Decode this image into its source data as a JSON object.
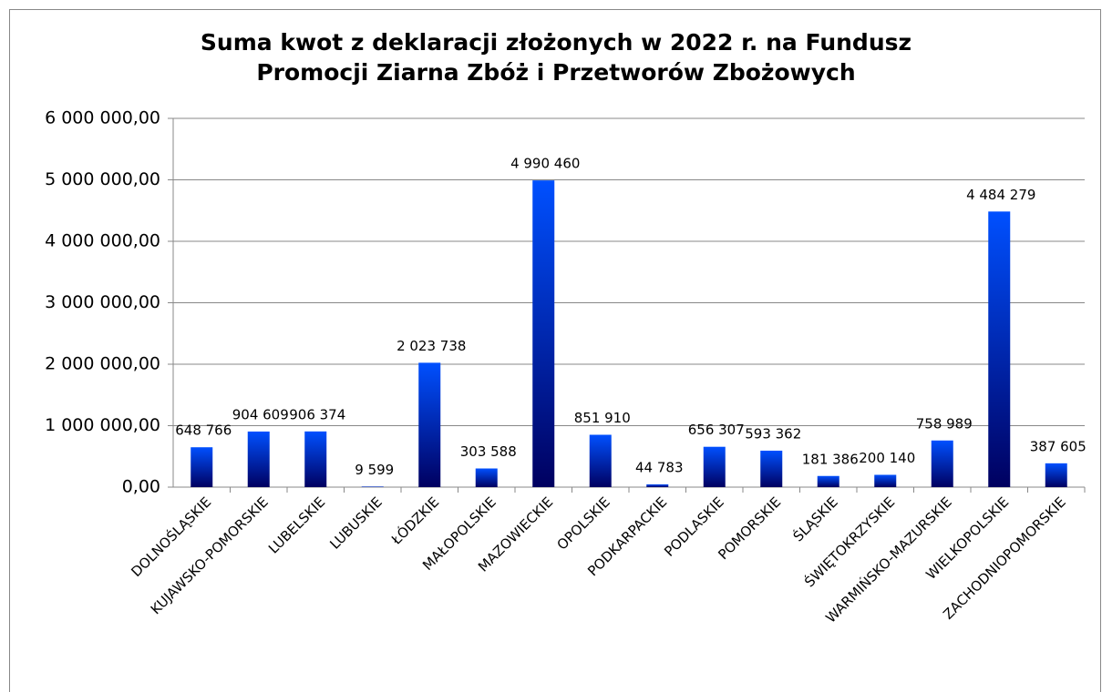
{
  "chart_data": {
    "type": "bar",
    "title": "Suma kwot z deklaracji złożonych w 2022 r. na Fundusz Promocji Ziarna Zbóż i Przetworów Zbożowych",
    "categories": [
      "DOLNOŚLĄSKIE",
      "KUJAWSKO-POMORSKIE",
      "LUBELSKIE",
      "LUBUSKIE",
      "ŁÓDZKIE",
      "MAŁOPOLSKIE",
      "MAZOWIECKIE",
      "OPOLSKIE",
      "PODKARPACKIE",
      "PODLASKIE",
      "POMORSKIE",
      "ŚLĄSKIE",
      "ŚWIĘTOKRZYSKIE",
      "WARMIŃSKO-MAZURSKIE",
      "WIELKOPOLSKIE",
      "ZACHODNIOPOMORSKIE"
    ],
    "values": [
      648766,
      904609,
      906374,
      9599,
      2023738,
      303588,
      4990460,
      851910,
      44783,
      656307,
      593362,
      181386,
      200140,
      758989,
      4484279,
      387605
    ],
    "value_labels": [
      "648 766",
      "904 609",
      "906 374",
      "9 599",
      "2 023 738",
      "303 588",
      "4 990 460",
      "851 910",
      "44 783",
      "656 307",
      "593 362",
      "181 386",
      "200 140",
      "758 989",
      "4 484 279",
      "387 605"
    ],
    "color": "#0050ff",
    "ylim": [
      0,
      6000000
    ],
    "yticks": [
      {
        "value": 0,
        "label": "0,00"
      },
      {
        "value": 1000000,
        "label": "1 000 000,00"
      },
      {
        "value": 2000000,
        "label": "2 000 000,00"
      },
      {
        "value": 3000000,
        "label": "3 000 000,00"
      },
      {
        "value": 4000000,
        "label": "4 000 000,00"
      },
      {
        "value": 5000000,
        "label": "5 000 000,00"
      },
      {
        "value": 6000000,
        "label": "6 000 000,00"
      }
    ],
    "grid": true
  }
}
